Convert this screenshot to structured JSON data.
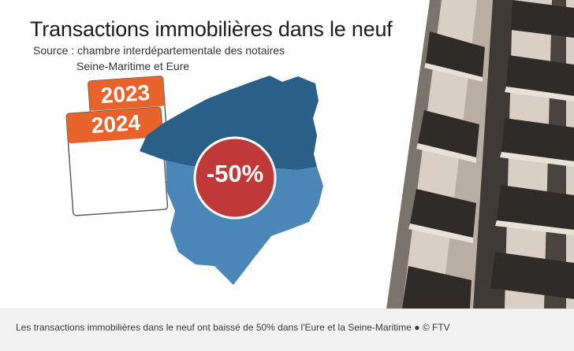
{
  "infographic": {
    "title": "Transactions immobilières dans le neuf",
    "source_line_1": "Source : chambre interdépartementale des notaires",
    "source_line_2": "Seine-Maritime et Eure",
    "calendar_back_year": "2023",
    "calendar_front_year": "2024",
    "change_percent": "-50%",
    "colors": {
      "seine_maritime_region": "#2a5f87",
      "eure_region": "#4a86b8",
      "calendar_tab": "#e8622c",
      "percent_badge": "#c13838",
      "caption_background": "#f2f2f2"
    }
  },
  "caption": {
    "text": "Les transactions immobilières dans le neuf ont baissé de 50% dans l'Eure et la Seine-Maritime",
    "separator": "●",
    "credit": "© FTV"
  }
}
